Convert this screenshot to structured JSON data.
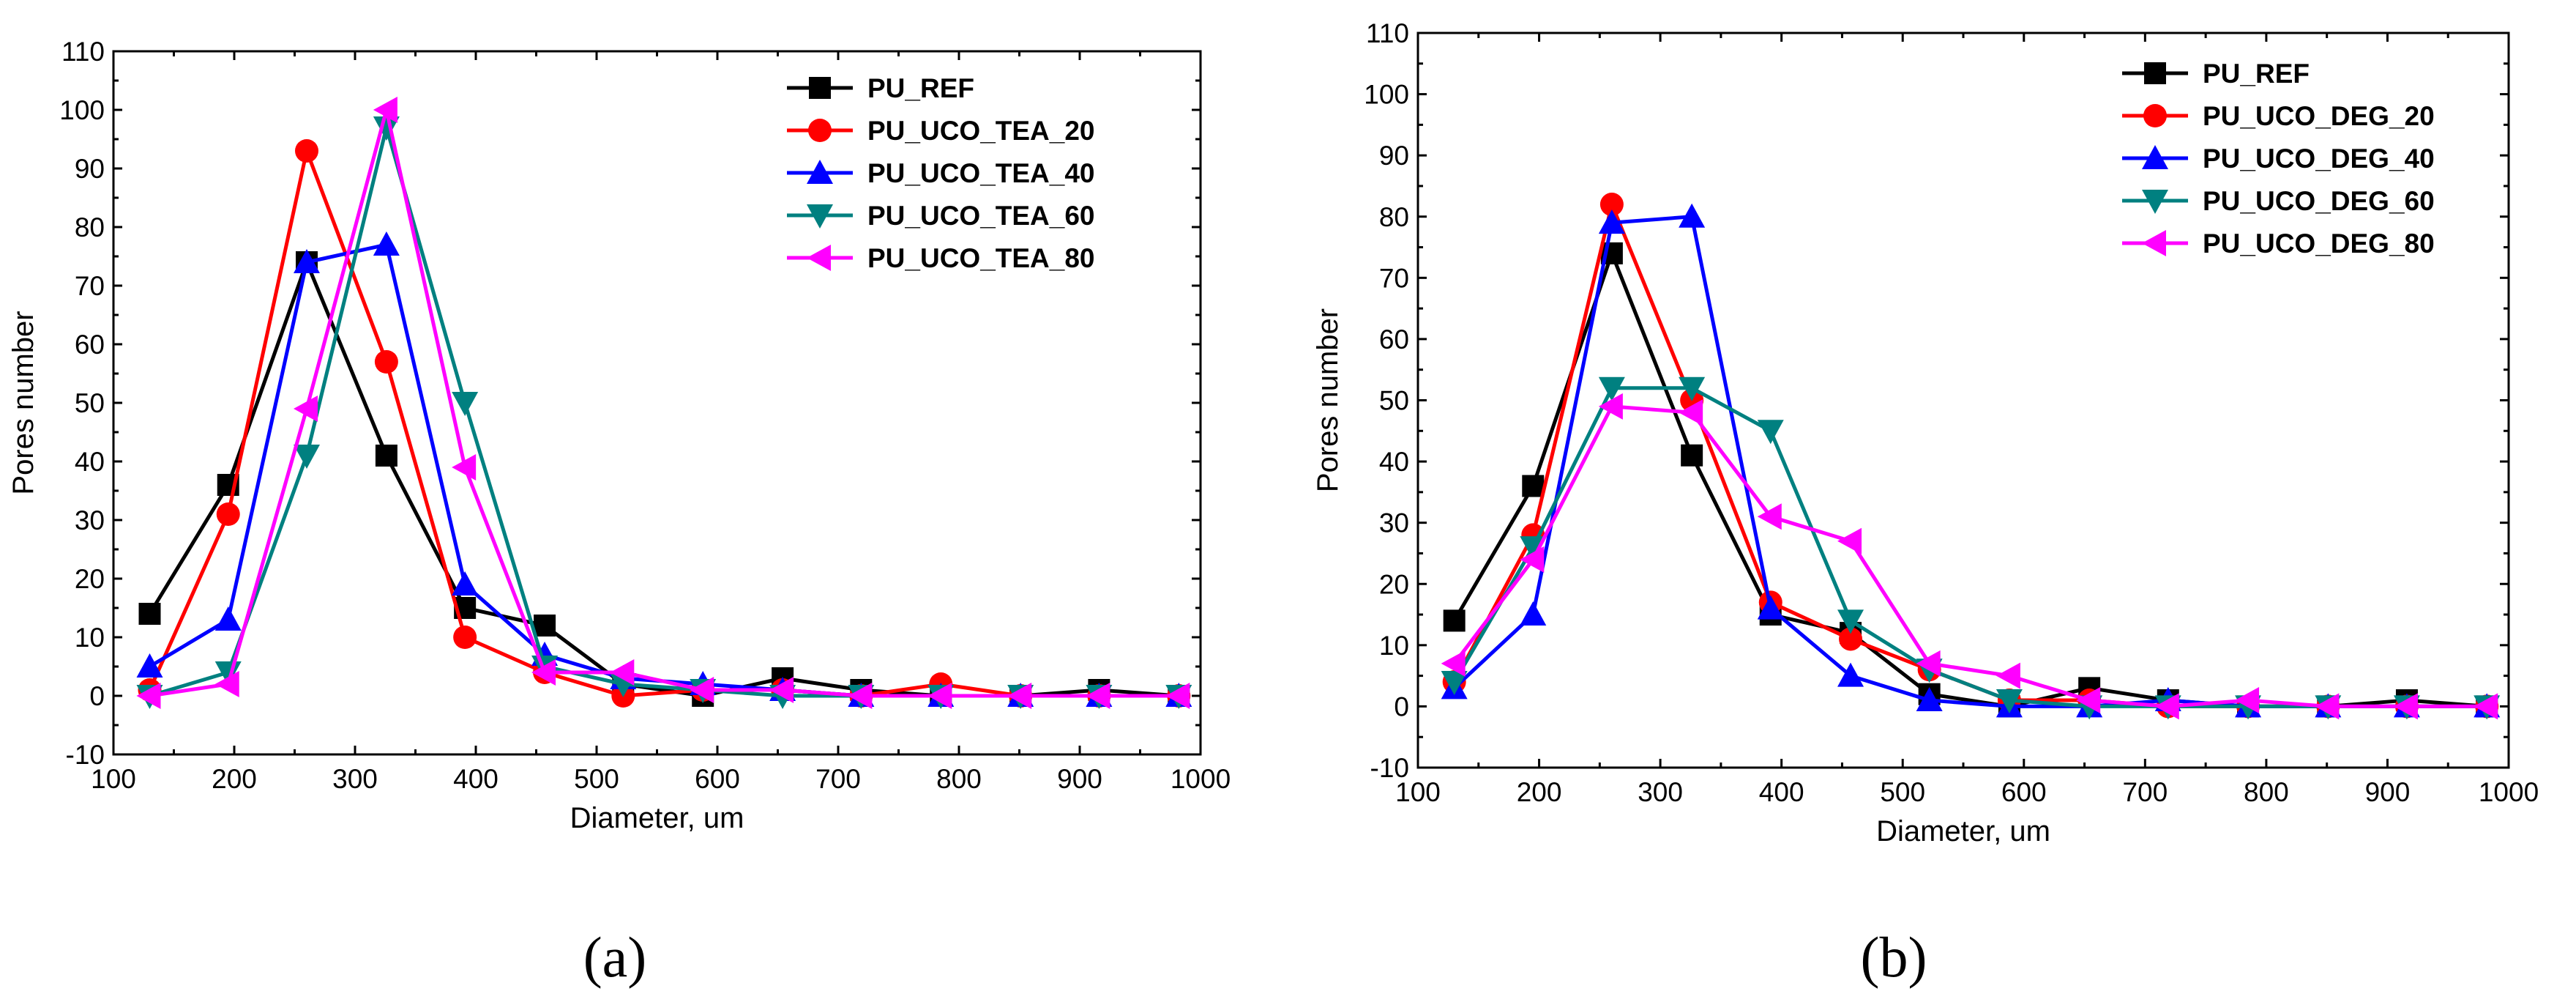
{
  "chart_data": [
    {
      "type": "line",
      "panel_label": "(a)",
      "xlabel": "Diameter, um",
      "ylabel": "Pores number",
      "xlim": [
        100,
        1000
      ],
      "ylim": [
        -10,
        110
      ],
      "xticks": [
        100,
        200,
        300,
        400,
        500,
        600,
        700,
        800,
        900,
        1000
      ],
      "yticks": [
        -10,
        0,
        10,
        20,
        30,
        40,
        50,
        60,
        70,
        80,
        90,
        100,
        110
      ],
      "grid": true,
      "legend_position": "top-right",
      "x": [
        130,
        195,
        260,
        326,
        391,
        457,
        522,
        588,
        654,
        719,
        785,
        851,
        916,
        982
      ],
      "series": [
        {
          "name": "PU_REF",
          "color": "#000000",
          "marker": "square",
          "values": [
            14,
            36,
            74,
            41,
            15,
            12,
            2,
            0,
            3,
            1,
            0,
            0,
            1,
            0
          ]
        },
        {
          "name": "PU_UCO_TEA_20",
          "color": "#ff0000",
          "marker": "circle",
          "values": [
            1,
            31,
            93,
            57,
            10,
            4,
            0,
            1,
            1,
            0,
            2,
            0,
            0,
            0
          ]
        },
        {
          "name": "PU_UCO_TEA_40",
          "color": "#0000ff",
          "marker": "triangle-up",
          "values": [
            5,
            13,
            74,
            77,
            19,
            7,
            3,
            2,
            1,
            0,
            0,
            0,
            0,
            0
          ]
        },
        {
          "name": "PU_UCO_TEA_60",
          "color": "#008080",
          "marker": "triangle-down",
          "values": [
            0,
            4,
            41,
            97,
            50,
            5,
            2,
            1,
            0,
            0,
            0,
            0,
            0,
            0
          ]
        },
        {
          "name": "PU_UCO_TEA_80",
          "color": "#ff00ff",
          "marker": "triangle-left",
          "values": [
            0,
            2,
            49,
            100,
            39,
            4,
            4,
            1,
            1,
            0,
            0,
            0,
            0,
            0
          ]
        }
      ]
    },
    {
      "type": "line",
      "panel_label": "(b)",
      "xlabel": "Diameter, um",
      "ylabel": "Pores number",
      "xlim": [
        100,
        1000
      ],
      "ylim": [
        -10,
        110
      ],
      "xticks": [
        100,
        200,
        300,
        400,
        500,
        600,
        700,
        800,
        900,
        1000
      ],
      "yticks": [
        -10,
        0,
        10,
        20,
        30,
        40,
        50,
        60,
        70,
        80,
        90,
        100,
        110
      ],
      "grid": true,
      "legend_position": "top-right",
      "x": [
        130,
        195,
        260,
        326,
        391,
        457,
        522,
        588,
        654,
        719,
        785,
        851,
        916,
        982
      ],
      "series": [
        {
          "name": "PU_REF",
          "color": "#000000",
          "marker": "square",
          "values": [
            14,
            36,
            74,
            41,
            15,
            12,
            2,
            0,
            3,
            1,
            0,
            0,
            1,
            0
          ]
        },
        {
          "name": "PU_UCO_DEG_20",
          "color": "#ff0000",
          "marker": "circle",
          "values": [
            4,
            28,
            82,
            50,
            17,
            11,
            6,
            1,
            1,
            0,
            0,
            0,
            0,
            0
          ]
        },
        {
          "name": "PU_UCO_DEG_40",
          "color": "#0000ff",
          "marker": "triangle-up",
          "values": [
            3,
            15,
            79,
            80,
            16,
            5,
            1,
            0,
            0,
            1,
            0,
            0,
            0,
            0
          ]
        },
        {
          "name": "PU_UCO_DEG_60",
          "color": "#008080",
          "marker": "triangle-down",
          "values": [
            4,
            26,
            52,
            52,
            45,
            14,
            6,
            1,
            0,
            0,
            0,
            0,
            0,
            0
          ]
        },
        {
          "name": "PU_UCO_DEG_80",
          "color": "#ff00ff",
          "marker": "triangle-left",
          "values": [
            7,
            24,
            49,
            48,
            31,
            27,
            7,
            5,
            1,
            0,
            1,
            0,
            0,
            0
          ]
        }
      ]
    }
  ]
}
